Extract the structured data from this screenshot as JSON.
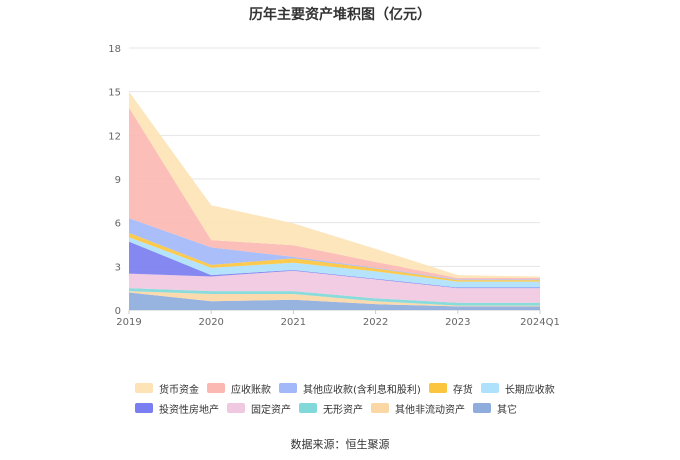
{
  "chart_data": {
    "type": "area",
    "stacked": true,
    "title": "历年主要资产堆积图（亿元）",
    "categories": [
      "2019",
      "2020",
      "2021",
      "2022",
      "2023",
      "2024Q1"
    ],
    "ylim": [
      0,
      18
    ],
    "yticks": [
      "0",
      "3",
      "6",
      "9",
      "12",
      "15",
      "18"
    ],
    "grid": true,
    "legend_position": "bottom",
    "series": [
      {
        "name": "其它",
        "color": "#8eacdc",
        "values": [
          1.2,
          0.6,
          0.7,
          0.4,
          0.25,
          0.25
        ]
      },
      {
        "name": "其他非流动资产",
        "color": "#fbd7a6",
        "values": [
          0.1,
          0.5,
          0.4,
          0.2,
          0.05,
          0.05
        ]
      },
      {
        "name": "无形资产",
        "color": "#80d8d8",
        "values": [
          0.2,
          0.2,
          0.2,
          0.2,
          0.2,
          0.2
        ]
      },
      {
        "name": "固定资产",
        "color": "#f0c8e0",
        "values": [
          1.0,
          1.0,
          1.4,
          1.3,
          1.0,
          1.0
        ]
      },
      {
        "name": "投资性房地产",
        "color": "#7b7ef0",
        "values": [
          2.2,
          0.1,
          0.05,
          0.05,
          0.05,
          0.05
        ]
      },
      {
        "name": "长期应收款",
        "color": "#aee1fb",
        "values": [
          0.3,
          0.5,
          0.5,
          0.5,
          0.4,
          0.4
        ]
      },
      {
        "name": "存货",
        "color": "#fcc53f",
        "values": [
          0.3,
          0.2,
          0.3,
          0.2,
          0.1,
          0.1
        ]
      },
      {
        "name": "其他应收款(含利息和股利)",
        "color": "#a3b8f8",
        "values": [
          1.0,
          1.2,
          0.1,
          0.05,
          0.05,
          0.05
        ]
      },
      {
        "name": "应收账款",
        "color": "#fbb8b2",
        "values": [
          7.6,
          0.5,
          0.8,
          0.4,
          0.1,
          0.1
        ]
      },
      {
        "name": "货币资金",
        "color": "#fde3b6",
        "values": [
          1.1,
          2.4,
          1.5,
          0.9,
          0.2,
          0.1
        ]
      }
    ],
    "legend_order": [
      "货币资金",
      "应收账款",
      "其他应收款(含利息和股利)",
      "存货",
      "长期应收款",
      "投资性房地产",
      "固定资产",
      "无形资产",
      "其他非流动资产",
      "其它"
    ]
  },
  "source_text": "数据来源：恒生聚源"
}
